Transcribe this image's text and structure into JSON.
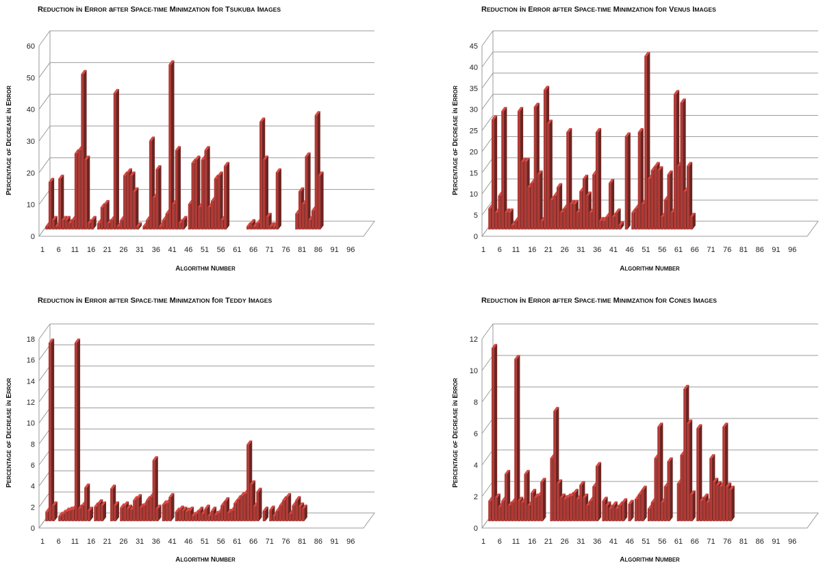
{
  "chart_data": [
    {
      "type": "bar",
      "title": "Reduction in Error after Space-Time Minimzation for Tsukuba Images",
      "xlabel": "Algorithm Number",
      "ylabel": "Percentage of Decrease in Error",
      "ylim": [
        0,
        60
      ],
      "yticks": [
        0,
        10,
        20,
        30,
        40,
        50,
        60
      ],
      "xtick_labels": [
        "1",
        "6",
        "11",
        "16",
        "21",
        "26",
        "31",
        "36",
        "41",
        "46",
        "51",
        "56",
        "61",
        "66",
        "71",
        "76",
        "81",
        "86",
        "91",
        "96"
      ],
      "grid": true,
      "x": [
        1,
        2,
        3,
        4,
        5,
        6,
        7,
        8,
        9,
        10,
        11,
        12,
        13,
        14,
        15,
        16,
        17,
        18,
        19,
        20,
        21,
        22,
        23,
        24,
        25,
        26,
        27,
        28,
        29,
        30,
        31,
        32,
        33,
        34,
        35,
        36,
        37,
        38,
        39,
        40,
        41,
        42,
        43,
        44,
        45,
        46,
        47,
        48,
        49,
        50,
        51,
        52,
        53,
        54,
        55,
        56,
        57,
        58,
        59,
        60,
        61,
        62,
        63,
        64,
        65,
        66,
        67,
        68,
        69,
        70,
        71,
        72,
        73,
        74,
        75,
        76,
        77,
        78,
        79,
        80,
        81,
        82,
        83,
        84,
        85,
        86,
        87,
        88,
        89,
        90,
        91,
        92,
        93,
        94,
        95,
        96,
        97,
        98,
        99,
        100
      ],
      "values": [
        1,
        15,
        3,
        1,
        16,
        3,
        3,
        2,
        3,
        24,
        25,
        49,
        22,
        2,
        3,
        0,
        2,
        7,
        8,
        2,
        3,
        43,
        1,
        3,
        17,
        18,
        17,
        12,
        1,
        0,
        1,
        3,
        28,
        10,
        19,
        1,
        3,
        5,
        52,
        8,
        25,
        2,
        3,
        0,
        8,
        21,
        22,
        7,
        22,
        25,
        7,
        9,
        16,
        17,
        3,
        20,
        0,
        0,
        0,
        0,
        0,
        0,
        1,
        2,
        1,
        2,
        34,
        22,
        4,
        1,
        1,
        18,
        0,
        0,
        0,
        0,
        0,
        5,
        12,
        8,
        23,
        3,
        6,
        36,
        17,
        0,
        0,
        0,
        0,
        0,
        0,
        0,
        0,
        0,
        0,
        0,
        0,
        0,
        0,
        0
      ]
    },
    {
      "type": "bar",
      "title": "Reduction in Error after Space-Time Minimzation for Venus Images",
      "xlabel": "Algorithm Number",
      "ylabel": "Percentage of Decrease in Error",
      "ylim": [
        0,
        45
      ],
      "yticks": [
        0,
        5,
        10,
        15,
        20,
        25,
        30,
        35,
        40,
        45
      ],
      "xtick_labels": [
        "1",
        "6",
        "11",
        "16",
        "21",
        "26",
        "31",
        "36",
        "41",
        "46",
        "51",
        "56",
        "61",
        "66",
        "71",
        "76",
        "81",
        "86",
        "91",
        "96"
      ],
      "grid": true,
      "x": [
        1,
        2,
        3,
        4,
        5,
        6,
        7,
        8,
        9,
        10,
        11,
        12,
        13,
        14,
        15,
        16,
        17,
        18,
        19,
        20,
        21,
        22,
        23,
        24,
        25,
        26,
        27,
        28,
        29,
        30,
        31,
        32,
        33,
        34,
        35,
        36,
        37,
        38,
        39,
        40,
        41,
        42,
        43,
        44,
        45,
        46,
        47,
        48,
        49,
        50,
        51,
        52,
        53,
        54,
        55,
        56,
        57,
        58,
        59,
        60,
        61,
        62,
        63,
        64,
        65,
        66,
        67,
        68,
        69,
        70,
        71,
        72,
        73,
        74,
        75,
        76,
        77,
        78,
        79,
        80,
        81,
        82,
        83,
        84,
        85,
        86,
        87,
        88,
        89,
        90,
        91,
        92,
        93,
        94,
        95,
        96,
        97,
        98,
        99,
        100
      ],
      "values": [
        5,
        26,
        4,
        8,
        28,
        4,
        4,
        1,
        2,
        28,
        16,
        16,
        10,
        11,
        29,
        13,
        2,
        33,
        25,
        7,
        8,
        10,
        4,
        5,
        23,
        6,
        6,
        4,
        9,
        12,
        8,
        4,
        13,
        23,
        2,
        2,
        3,
        11,
        3,
        4,
        1,
        0,
        22,
        0,
        4,
        5,
        23,
        6,
        41,
        12,
        14,
        15,
        14,
        3,
        7,
        13,
        4,
        32,
        15,
        30,
        9,
        15,
        3,
        0,
        0,
        0,
        0,
        0,
        0,
        0,
        0,
        0,
        0,
        0,
        0,
        0,
        0,
        0,
        0,
        0,
        0,
        0,
        0,
        0,
        0,
        0,
        0,
        0,
        0,
        0,
        0,
        0,
        0,
        0,
        0,
        0,
        0,
        0,
        0,
        0
      ]
    },
    {
      "type": "bar",
      "title": "Reduction in Error after Space-Time Minimzation for Teddy Images",
      "xlabel": "Algorithm Number",
      "ylabel": "Percentage of Decrease in Error",
      "ylim": [
        0,
        18
      ],
      "yticks": [
        0,
        2,
        4,
        6,
        8,
        10,
        12,
        14,
        16,
        18
      ],
      "xtick_labels": [
        "1",
        "6",
        "11",
        "16",
        "21",
        "26",
        "31",
        "36",
        "41",
        "46",
        "51",
        "56",
        "61",
        "66",
        "71",
        "76",
        "81",
        "86",
        "91",
        "96"
      ],
      "grid": true,
      "x": [
        1,
        2,
        3,
        4,
        5,
        6,
        7,
        8,
        9,
        10,
        11,
        12,
        13,
        14,
        15,
        16,
        17,
        18,
        19,
        20,
        21,
        22,
        23,
        24,
        25,
        26,
        27,
        28,
        29,
        30,
        31,
        32,
        33,
        34,
        35,
        36,
        37,
        38,
        39,
        40,
        41,
        42,
        43,
        44,
        45,
        46,
        47,
        48,
        49,
        50,
        51,
        52,
        53,
        54,
        55,
        56,
        57,
        58,
        59,
        60,
        61,
        62,
        63,
        64,
        65,
        66,
        67,
        68,
        69,
        70,
        71,
        72,
        73,
        74,
        75,
        76,
        77,
        78,
        79,
        80,
        81,
        82,
        83,
        84,
        85,
        86,
        87,
        88,
        89,
        90,
        91,
        92,
        93,
        94,
        95,
        96,
        97,
        98,
        99,
        100
      ],
      "values": [
        0.9,
        17,
        1.5,
        0,
        0.5,
        0.7,
        0.9,
        1,
        1.1,
        17,
        1.2,
        1.5,
        3.2,
        1,
        0,
        1.4,
        1.7,
        1.5,
        0,
        0,
        3.1,
        1.5,
        0,
        1.3,
        1.5,
        1.2,
        1.1,
        2,
        2.2,
        1.3,
        1.5,
        2,
        2.3,
        5.8,
        1.2,
        0,
        1.6,
        1.7,
        2.3,
        0,
        0.9,
        1.1,
        1,
        0.9,
        1,
        0.5,
        0.7,
        1,
        0.7,
        1.2,
        0.5,
        1,
        0.6,
        0.8,
        1.5,
        1.9,
        0.8,
        1,
        1.7,
        2.1,
        2.4,
        2.6,
        7.3,
        3.5,
        1.4,
        2.8,
        0,
        1,
        0,
        1.1,
        0.5,
        1,
        1.5,
        2,
        2.3,
        0.7,
        1.5,
        2,
        1.4,
        1.2,
        0,
        0,
        0,
        0,
        0,
        0,
        0,
        0,
        0,
        0,
        0,
        0,
        0,
        0,
        0,
        0,
        0,
        0,
        0,
        0
      ]
    },
    {
      "type": "bar",
      "title": "Reduction in Error after Space-Time Minimzation for Cones Images",
      "xlabel": "Algorithm Number",
      "ylabel": "Percentage of Decrease in Error",
      "ylim": [
        0,
        12
      ],
      "yticks": [
        0,
        2,
        4,
        6,
        8,
        10,
        12
      ],
      "xtick_labels": [
        "1",
        "6",
        "11",
        "16",
        "21",
        "26",
        "31",
        "36",
        "41",
        "46",
        "51",
        "56",
        "61",
        "66",
        "71",
        "76",
        "81",
        "86",
        "91",
        "96"
      ],
      "grid": true,
      "x": [
        1,
        2,
        3,
        4,
        5,
        6,
        7,
        8,
        9,
        10,
        11,
        12,
        13,
        14,
        15,
        16,
        17,
        18,
        19,
        20,
        21,
        22,
        23,
        24,
        25,
        26,
        27,
        28,
        29,
        30,
        31,
        32,
        33,
        34,
        35,
        36,
        37,
        38,
        39,
        40,
        41,
        42,
        43,
        44,
        45,
        46,
        47,
        48,
        49,
        50,
        51,
        52,
        53,
        54,
        55,
        56,
        57,
        58,
        59,
        60,
        61,
        62,
        63,
        64,
        65,
        66,
        67,
        68,
        69,
        70,
        71,
        72,
        73,
        74,
        75,
        76,
        77,
        78,
        79,
        80,
        81,
        82,
        83,
        84,
        85,
        86,
        87,
        88,
        89,
        90,
        91,
        92,
        93,
        94,
        95,
        96,
        97,
        98,
        99,
        100
      ],
      "values": [
        1.3,
        11,
        1.5,
        0.9,
        1.3,
        3,
        1,
        1.2,
        10.3,
        1.3,
        1.2,
        3,
        1,
        1.8,
        1.5,
        1.6,
        2.5,
        0,
        0,
        4,
        7,
        2.4,
        1.5,
        1.4,
        1.5,
        1.6,
        1.8,
        1.4,
        2.3,
        1.5,
        1,
        1.3,
        2.2,
        3.5,
        0,
        1.3,
        1,
        0.8,
        1,
        0.8,
        1,
        1.2,
        0,
        1.1,
        0,
        1.4,
        1.7,
        2,
        0,
        0.8,
        1.2,
        4,
        6,
        1.2,
        2.2,
        3.8,
        0,
        0,
        2.4,
        4.2,
        8.4,
        6.2,
        1.7,
        0,
        5.9,
        1.3,
        1.5,
        1.2,
        4,
        2.5,
        2.3,
        2.2,
        6,
        2.2,
        2,
        0,
        0,
        0,
        0,
        0,
        0,
        0,
        0,
        0,
        0,
        0,
        0,
        0,
        0,
        0,
        0,
        0,
        0,
        0,
        0,
        0,
        0,
        0,
        0,
        0
      ]
    }
  ]
}
